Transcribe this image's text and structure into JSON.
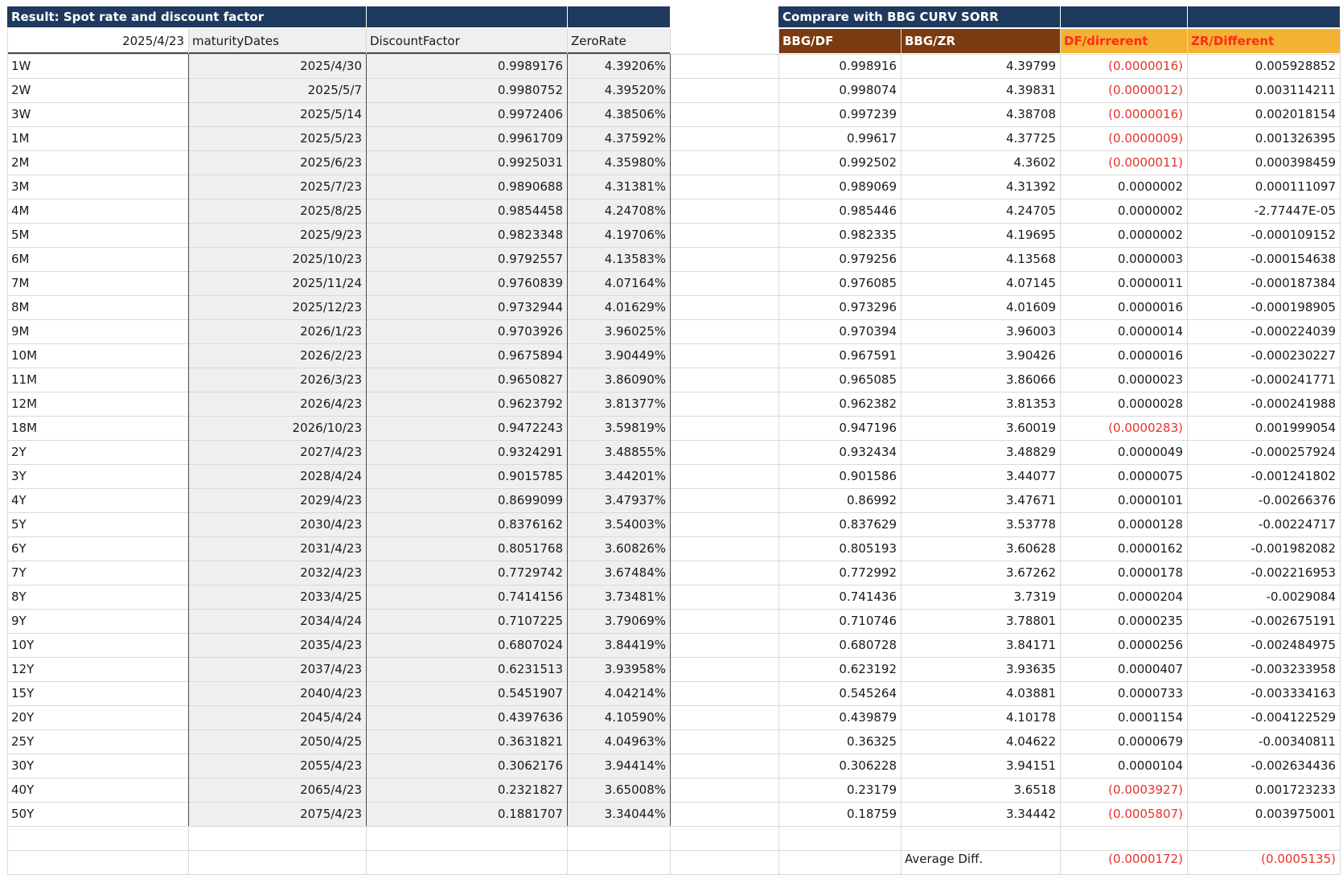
{
  "left_table": {
    "title": "Result: Spot rate and discount factor",
    "base_date": "2025/4/23",
    "col_maturity": "maturityDates",
    "col_df": "DiscountFactor",
    "col_zr": "ZeroRate"
  },
  "right_table": {
    "title": "Comprare with BBG CURV SORR",
    "col_bbg_df": "BBG/DF",
    "col_bbg_zr": "BBG/ZR",
    "col_df_diff": "DF/dirrerent",
    "col_zr_diff": "ZR/Different"
  },
  "rows": [
    {
      "tenor": "1W",
      "date": "2025/4/30",
      "df": "0.9989176",
      "zr": "4.39206%",
      "bbg_df": "0.998916",
      "bbg_zr": "4.39799",
      "df_diff": "(0.0000016)",
      "zr_diff": "0.005928852"
    },
    {
      "tenor": "2W",
      "date": "2025/5/7",
      "df": "0.9980752",
      "zr": "4.39520%",
      "bbg_df": "0.998074",
      "bbg_zr": "4.39831",
      "df_diff": "(0.0000012)",
      "zr_diff": "0.003114211"
    },
    {
      "tenor": "3W",
      "date": "2025/5/14",
      "df": "0.9972406",
      "zr": "4.38506%",
      "bbg_df": "0.997239",
      "bbg_zr": "4.38708",
      "df_diff": "(0.0000016)",
      "zr_diff": "0.002018154"
    },
    {
      "tenor": "1M",
      "date": "2025/5/23",
      "df": "0.9961709",
      "zr": "4.37592%",
      "bbg_df": "0.99617",
      "bbg_zr": "4.37725",
      "df_diff": "(0.0000009)",
      "zr_diff": "0.001326395"
    },
    {
      "tenor": "2M",
      "date": "2025/6/23",
      "df": "0.9925031",
      "zr": "4.35980%",
      "bbg_df": "0.992502",
      "bbg_zr": "4.3602",
      "df_diff": "(0.0000011)",
      "zr_diff": "0.000398459"
    },
    {
      "tenor": "3M",
      "date": "2025/7/23",
      "df": "0.9890688",
      "zr": "4.31381%",
      "bbg_df": "0.989069",
      "bbg_zr": "4.31392",
      "df_diff": "0.0000002",
      "zr_diff": "0.000111097"
    },
    {
      "tenor": "4M",
      "date": "2025/8/25",
      "df": "0.9854458",
      "zr": "4.24708%",
      "bbg_df": "0.985446",
      "bbg_zr": "4.24705",
      "df_diff": "0.0000002",
      "zr_diff": "-2.77447E-05"
    },
    {
      "tenor": "5M",
      "date": "2025/9/23",
      "df": "0.9823348",
      "zr": "4.19706%",
      "bbg_df": "0.982335",
      "bbg_zr": "4.19695",
      "df_diff": "0.0000002",
      "zr_diff": "-0.000109152"
    },
    {
      "tenor": "6M",
      "date": "2025/10/23",
      "df": "0.9792557",
      "zr": "4.13583%",
      "bbg_df": "0.979256",
      "bbg_zr": "4.13568",
      "df_diff": "0.0000003",
      "zr_diff": "-0.000154638"
    },
    {
      "tenor": "7M",
      "date": "2025/11/24",
      "df": "0.9760839",
      "zr": "4.07164%",
      "bbg_df": "0.976085",
      "bbg_zr": "4.07145",
      "df_diff": "0.0000011",
      "zr_diff": "-0.000187384"
    },
    {
      "tenor": "8M",
      "date": "2025/12/23",
      "df": "0.9732944",
      "zr": "4.01629%",
      "bbg_df": "0.973296",
      "bbg_zr": "4.01609",
      "df_diff": "0.0000016",
      "zr_diff": "-0.000198905"
    },
    {
      "tenor": "9M",
      "date": "2026/1/23",
      "df": "0.9703926",
      "zr": "3.96025%",
      "bbg_df": "0.970394",
      "bbg_zr": "3.96003",
      "df_diff": "0.0000014",
      "zr_diff": "-0.000224039"
    },
    {
      "tenor": "10M",
      "date": "2026/2/23",
      "df": "0.9675894",
      "zr": "3.90449%",
      "bbg_df": "0.967591",
      "bbg_zr": "3.90426",
      "df_diff": "0.0000016",
      "zr_diff": "-0.000230227"
    },
    {
      "tenor": "11M",
      "date": "2026/3/23",
      "df": "0.9650827",
      "zr": "3.86090%",
      "bbg_df": "0.965085",
      "bbg_zr": "3.86066",
      "df_diff": "0.0000023",
      "zr_diff": "-0.000241771"
    },
    {
      "tenor": "12M",
      "date": "2026/4/23",
      "df": "0.9623792",
      "zr": "3.81377%",
      "bbg_df": "0.962382",
      "bbg_zr": "3.81353",
      "df_diff": "0.0000028",
      "zr_diff": "-0.000241988"
    },
    {
      "tenor": "18M",
      "date": "2026/10/23",
      "df": "0.9472243",
      "zr": "3.59819%",
      "bbg_df": "0.947196",
      "bbg_zr": "3.60019",
      "df_diff": "(0.0000283)",
      "zr_diff": "0.001999054"
    },
    {
      "tenor": "2Y",
      "date": "2027/4/23",
      "df": "0.9324291",
      "zr": "3.48855%",
      "bbg_df": "0.932434",
      "bbg_zr": "3.48829",
      "df_diff": "0.0000049",
      "zr_diff": "-0.000257924"
    },
    {
      "tenor": "3Y",
      "date": "2028/4/24",
      "df": "0.9015785",
      "zr": "3.44201%",
      "bbg_df": "0.901586",
      "bbg_zr": "3.44077",
      "df_diff": "0.0000075",
      "zr_diff": "-0.001241802"
    },
    {
      "tenor": "4Y",
      "date": "2029/4/23",
      "df": "0.8699099",
      "zr": "3.47937%",
      "bbg_df": "0.86992",
      "bbg_zr": "3.47671",
      "df_diff": "0.0000101",
      "zr_diff": "-0.00266376"
    },
    {
      "tenor": "5Y",
      "date": "2030/4/23",
      "df": "0.8376162",
      "zr": "3.54003%",
      "bbg_df": "0.837629",
      "bbg_zr": "3.53778",
      "df_diff": "0.0000128",
      "zr_diff": "-0.00224717"
    },
    {
      "tenor": "6Y",
      "date": "2031/4/23",
      "df": "0.8051768",
      "zr": "3.60826%",
      "bbg_df": "0.805193",
      "bbg_zr": "3.60628",
      "df_diff": "0.0000162",
      "zr_diff": "-0.001982082"
    },
    {
      "tenor": "7Y",
      "date": "2032/4/23",
      "df": "0.7729742",
      "zr": "3.67484%",
      "bbg_df": "0.772992",
      "bbg_zr": "3.67262",
      "df_diff": "0.0000178",
      "zr_diff": "-0.002216953"
    },
    {
      "tenor": "8Y",
      "date": "2033/4/25",
      "df": "0.7414156",
      "zr": "3.73481%",
      "bbg_df": "0.741436",
      "bbg_zr": "3.7319",
      "df_diff": "0.0000204",
      "zr_diff": "-0.0029084"
    },
    {
      "tenor": "9Y",
      "date": "2034/4/24",
      "df": "0.7107225",
      "zr": "3.79069%",
      "bbg_df": "0.710746",
      "bbg_zr": "3.78801",
      "df_diff": "0.0000235",
      "zr_diff": "-0.002675191"
    },
    {
      "tenor": "10Y",
      "date": "2035/4/23",
      "df": "0.6807024",
      "zr": "3.84419%",
      "bbg_df": "0.680728",
      "bbg_zr": "3.84171",
      "df_diff": "0.0000256",
      "zr_diff": "-0.002484975"
    },
    {
      "tenor": "12Y",
      "date": "2037/4/23",
      "df": "0.6231513",
      "zr": "3.93958%",
      "bbg_df": "0.623192",
      "bbg_zr": "3.93635",
      "df_diff": "0.0000407",
      "zr_diff": "-0.003233958"
    },
    {
      "tenor": "15Y",
      "date": "2040/4/23",
      "df": "0.5451907",
      "zr": "4.04214%",
      "bbg_df": "0.545264",
      "bbg_zr": "4.03881",
      "df_diff": "0.0000733",
      "zr_diff": "-0.003334163"
    },
    {
      "tenor": "20Y",
      "date": "2045/4/24",
      "df": "0.4397636",
      "zr": "4.10590%",
      "bbg_df": "0.439879",
      "bbg_zr": "4.10178",
      "df_diff": "0.0001154",
      "zr_diff": "-0.004122529"
    },
    {
      "tenor": "25Y",
      "date": "2050/4/25",
      "df": "0.3631821",
      "zr": "4.04963%",
      "bbg_df": "0.36325",
      "bbg_zr": "4.04622",
      "df_diff": "0.0000679",
      "zr_diff": "-0.00340811"
    },
    {
      "tenor": "30Y",
      "date": "2055/4/23",
      "df": "0.3062176",
      "zr": "3.94414%",
      "bbg_df": "0.306228",
      "bbg_zr": "3.94151",
      "df_diff": "0.0000104",
      "zr_diff": "-0.002634436"
    },
    {
      "tenor": "40Y",
      "date": "2065/4/23",
      "df": "0.2321827",
      "zr": "3.65008%",
      "bbg_df": "0.23179",
      "bbg_zr": "3.6518",
      "df_diff": "(0.0003927)",
      "zr_diff": "0.001723233"
    },
    {
      "tenor": "50Y",
      "date": "2075/4/23",
      "df": "0.1881707",
      "zr": "3.34044%",
      "bbg_df": "0.18759",
      "bbg_zr": "3.34442",
      "df_diff": "(0.0005807)",
      "zr_diff": "0.003975001"
    }
  ],
  "summary": {
    "label": "Average Diff.",
    "df_avg": "(0.0000172)",
    "zr_avg": "(0.0005135)"
  },
  "colors": {
    "header_blue": "#1f3a5f",
    "header_brown": "#7b3a0f",
    "header_gold": "#f2b233",
    "negative_red": "#e8312a",
    "shaded_cell": "#efefef"
  }
}
